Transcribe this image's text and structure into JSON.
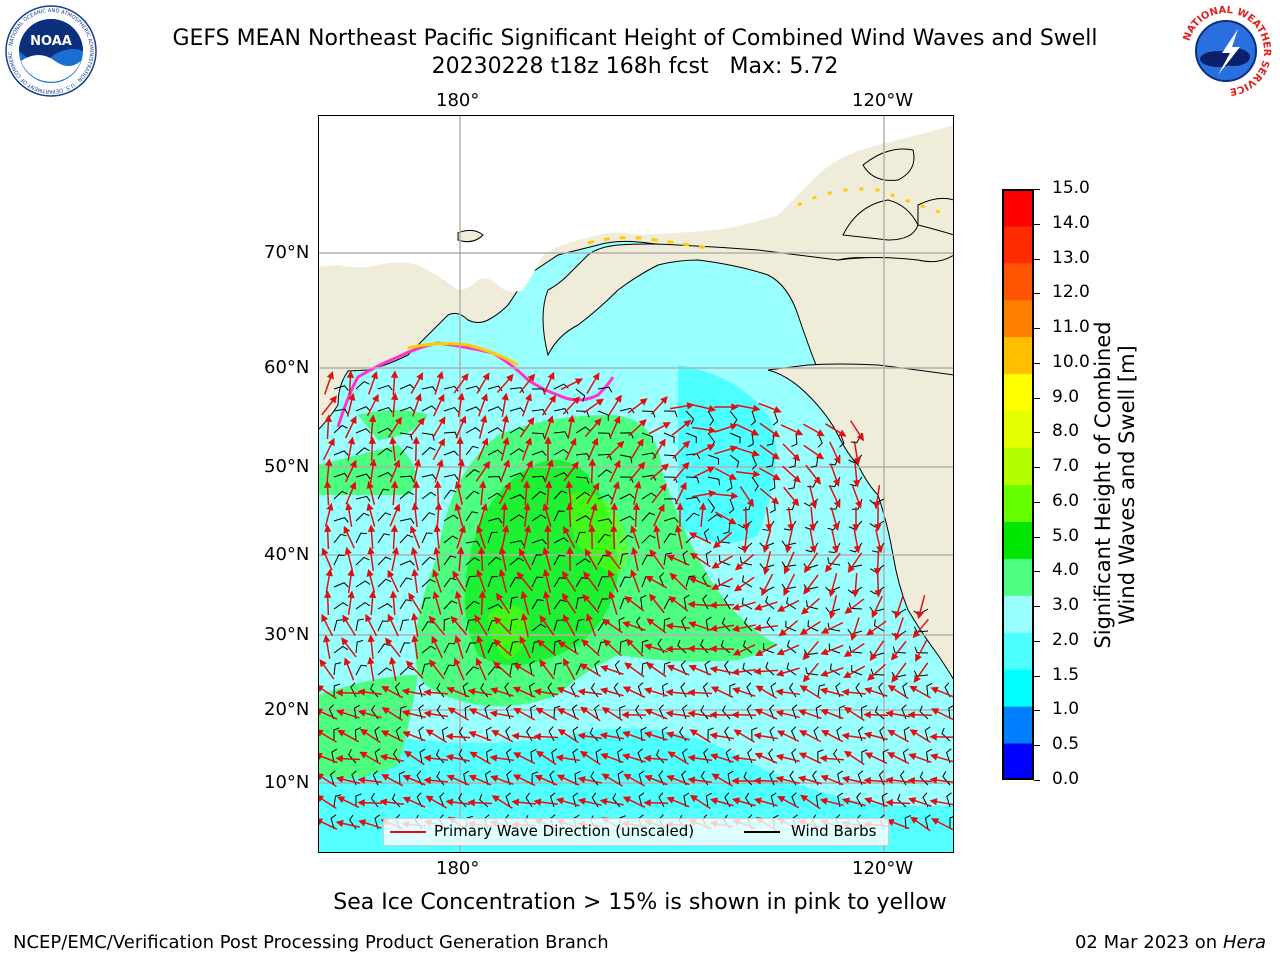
{
  "title": {
    "line1": "GEFS MEAN Northeast Pacific Significant Height of Combined Wind Waves and Swell",
    "line2": "20230228 t18z 168h fcst   Max: 5.72"
  },
  "logos": {
    "left": {
      "name": "noaa-logo",
      "text": "NOAA",
      "ring_text": "NATIONAL OCEANIC AND ATMOSPHERIC ADMINISTRATION · U.S. DEPARTMENT OF COMMERCE"
    },
    "right": {
      "name": "nws-logo",
      "ring_text": "NATIONAL WEATHER SERVICE"
    }
  },
  "map": {
    "top_labels": [
      "180°",
      "120°W"
    ],
    "bottom_labels": [
      "180°",
      "120°W"
    ],
    "lat_labels": [
      "70°N",
      "60°N",
      "50°N",
      "40°N",
      "30°N",
      "20°N",
      "10°N"
    ],
    "colors": {
      "land": "#efecd9",
      "ocean_base": "#99ffff",
      "gridline": "#b0b0b0",
      "arrow": "#e01010",
      "barb": "#000000"
    }
  },
  "legend": {
    "wave_label": "Primary Wave Direction (unscaled)",
    "wave_color": "#e01010",
    "barb_label": "Wind Barbs",
    "barb_color": "#000000"
  },
  "colorbar": {
    "title_line1": "Significant Height of Combined",
    "title_line2": "Wind Waves and Swell [m]",
    "ticks": [
      "15.0",
      "14.0",
      "13.0",
      "12.0",
      "11.0",
      "10.0",
      "9.0",
      "8.0",
      "7.0",
      "6.0",
      "5.0",
      "4.0",
      "3.0",
      "2.0",
      "1.5",
      "1.0",
      "0.5",
      "0.0"
    ],
    "colors_bottom_to_top": [
      "#0000ff",
      "#0080ff",
      "#00ffff",
      "#4dffff",
      "#99ffff",
      "#4dff80",
      "#00e600",
      "#66ff00",
      "#b3ff00",
      "#e6ff00",
      "#ffff00",
      "#ffbf00",
      "#ff8000",
      "#ff5500",
      "#ff2b00",
      "#ff0000"
    ]
  },
  "caption": "Sea Ice Concentration > 15% is shown in pink to yellow",
  "footer": {
    "left": "NCEP/EMC/Verification Post Processing Product Generation Branch",
    "right_date": "02 Mar 2023 on",
    "right_host": "Hera"
  }
}
